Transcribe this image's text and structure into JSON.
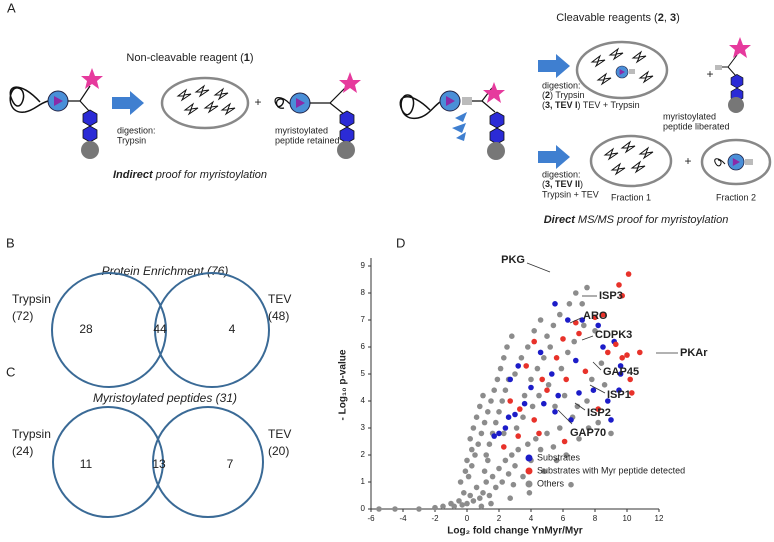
{
  "panel_labels": [
    "A",
    "B",
    "C",
    "D"
  ],
  "scheme": {
    "noncleavable_title": [
      "Non-cleavable reagent (",
      "1",
      ")"
    ],
    "digestion_trypsin": [
      "digestion:",
      "Trypsin"
    ],
    "retained": [
      "myristoylated",
      "peptide retained"
    ],
    "indirect": [
      "Indirect",
      " proof for  myristoylation"
    ],
    "cleavable_title": [
      "Cleavable reagents (",
      "2",
      ", ",
      "3",
      ")"
    ],
    "digestion_1": {
      "line1": "digestion:",
      "line2": [
        "(",
        "2",
        ") Trypsin"
      ],
      "line3": [
        "(",
        "3, TEV I",
        ") TEV + Trypsin"
      ]
    },
    "liberated": [
      "myristoylated",
      "peptide liberated"
    ],
    "digestion_2": {
      "line1": "digestion:",
      "line2": [
        "(",
        "3, TEV II",
        ")"
      ],
      "line3": "Trypsin + TEV"
    },
    "plus": "+",
    "fractions": [
      "Fraction 1",
      "Fraction 2"
    ],
    "direct": [
      "Direct",
      " MS/MS proof for myristoylation"
    ]
  },
  "venn_b": {
    "title": "Protein Enrichment (76)",
    "left_label": "Trypsin",
    "left_count": "(72)",
    "right_label": "TEV",
    "right_count": "(48)",
    "left_only": "28",
    "both": "44",
    "right_only": "4"
  },
  "venn_c": {
    "title": "Myristoylated peptides (31)",
    "left_label": "Trypsin",
    "left_count": "(24)",
    "right_label": "TEV",
    "right_count": "(20)",
    "left_only": "11",
    "both": "13",
    "right_only": "7"
  },
  "chart_data": {
    "type": "scatter",
    "xlabel": "Log₂ fold change YnMyr/Myr",
    "ylabel": "- Log₁₀ p-value",
    "xlim": [
      -6,
      12
    ],
    "xticks": [
      -6,
      -4,
      -2,
      0,
      2,
      4,
      6,
      8,
      10,
      12
    ],
    "ylim": [
      0,
      9
    ],
    "yticks": [
      0,
      1,
      2,
      3,
      4,
      5,
      6,
      7,
      8,
      9
    ],
    "annotations": [
      "PKG",
      "ISP3",
      "ARO",
      "CDPK3",
      "PKAr",
      "GAP45",
      "ISP1",
      "ISP2",
      "GAP70"
    ],
    "series": [
      {
        "name": "Others",
        "color": "#8c8c8c",
        "x": [
          -5.5,
          -4.5,
          -3,
          -2,
          -1.5,
          -1,
          -0.8,
          -0.5,
          -0.3,
          0,
          0.2,
          0.4,
          0.6,
          0.8,
          1,
          1.2,
          1.4,
          1.6,
          1.8,
          2,
          2.2,
          2.4,
          2.6,
          2.8,
          3,
          3.2,
          3.5,
          3.8,
          4,
          4.3,
          4.6,
          5,
          5.4,
          5.8,
          6.2,
          6.6,
          7,
          7.6,
          0.1,
          0.3,
          0.5,
          0.7,
          0.9,
          1.1,
          1.3,
          1.5,
          1.7,
          1.9,
          2.1,
          2.3,
          2.5,
          2.8,
          0.2,
          0.4,
          0.6,
          0.8,
          1,
          1.2,
          1.4,
          1.6,
          1.8,
          2,
          2.2,
          2.4,
          2.6,
          3,
          3.4,
          3.8,
          4.2,
          4.6,
          5,
          5.4,
          5.8,
          6.4,
          6.8,
          7.5,
          7.2,
          -0.2,
          -0.4,
          -0.1,
          0,
          0.3,
          1.1,
          1.3,
          3.6,
          4,
          4.4,
          4.8,
          5.2,
          3.1,
          3.5,
          4.1,
          4.5,
          5.1,
          5.9,
          6.3,
          6.7,
          7.3,
          8,
          8.4,
          7.8,
          8.6,
          7.5,
          8.2,
          6.9,
          6.1,
          5.5,
          2.9,
          3.9,
          4.8,
          5.6,
          9,
          6.5,
          2.3,
          1.5,
          0.9,
          2.7
        ],
        "values": [
          0,
          0,
          0,
          0.05,
          0.1,
          0.2,
          0.1,
          0.3,
          0.15,
          0.2,
          0.5,
          0.3,
          0.8,
          0.4,
          0.6,
          1,
          0.5,
          1.2,
          0.8,
          1.5,
          1,
          1.8,
          1.3,
          2,
          1.6,
          2.2,
          1.2,
          2.4,
          1.8,
          2.6,
          2.2,
          2.8,
          2.3,
          3,
          2,
          3.4,
          2.6,
          3,
          1.2,
          1.6,
          2,
          2.4,
          2.8,
          3.2,
          3.6,
          4,
          4.4,
          4.8,
          5.2,
          5.6,
          6,
          6.4,
          2.6,
          3,
          3.4,
          3.8,
          4.2,
          2,
          2.4,
          2.8,
          3.2,
          3.6,
          4,
          4.4,
          4.8,
          5,
          5.6,
          6,
          6.6,
          7,
          6.4,
          6.8,
          7.2,
          7.6,
          8,
          8.2,
          7.6,
          0.6,
          1,
          1.4,
          1.8,
          2.2,
          1.4,
          1.8,
          4.2,
          4.8,
          5.2,
          5.6,
          6,
          3,
          3.4,
          3.8,
          4.2,
          4.6,
          5.2,
          5.8,
          6.2,
          6.8,
          6.6,
          5.4,
          4.8,
          4.6,
          4,
          3.2,
          3.8,
          4.2,
          3.8,
          0.9,
          0.6,
          1.4,
          1.8,
          2.8,
          0.9,
          2.8,
          0.2,
          0.1,
          0.4
        ]
      },
      {
        "name": "Substrates",
        "color": "#1c1cc8",
        "x": [
          5.5,
          6.3,
          7.2,
          8.2,
          8.5,
          9.2,
          9.6,
          9.6,
          9.5,
          8.8,
          9,
          5.7,
          4.8,
          4,
          3.6,
          3,
          2.7,
          2.4,
          2,
          3.2,
          4.6,
          5.3,
          6.8,
          7,
          7.9,
          6.5,
          5.5,
          2.6,
          1.7
        ],
        "values": [
          7.6,
          7,
          7,
          6.8,
          6,
          6.2,
          5.3,
          5,
          4.4,
          4,
          3.3,
          4.2,
          3.9,
          4.5,
          3.9,
          3.5,
          4.8,
          3,
          2.8,
          5.3,
          5.8,
          5,
          5.5,
          4.3,
          4.4,
          3.3,
          3.6,
          3.4,
          2.7
        ]
      },
      {
        "name": "Substrates with Myr peptide detected",
        "color": "#e8322a",
        "x": [
          10.1,
          9.5,
          9.7,
          8.5,
          8,
          9.3,
          9.7,
          10,
          10.2,
          10.3,
          10.8,
          8.8,
          7,
          6.8,
          6,
          5.6,
          4.2,
          3.7,
          4.7,
          6.2,
          7.4,
          5,
          3.3,
          2.7,
          2.3,
          4.2,
          8.2,
          6.1,
          3.2,
          4.5
        ],
        "values": [
          8.7,
          8.3,
          7.9,
          7.2,
          7.1,
          6.1,
          5.6,
          5.7,
          4.8,
          4.3,
          5.8,
          5.8,
          6.5,
          6.9,
          6.3,
          5.6,
          6.2,
          5.3,
          4.8,
          4.8,
          5.1,
          4.4,
          3.7,
          4,
          2.3,
          3.3,
          3.7,
          2.5,
          2.7,
          2.8
        ]
      }
    ]
  }
}
